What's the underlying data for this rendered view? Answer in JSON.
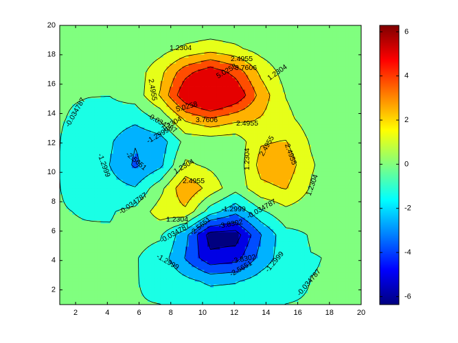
{
  "chart_data": {
    "type": "contour",
    "colormap": "jet",
    "x": [
      1,
      2.58,
      4.17,
      5.75,
      7.33,
      8.92,
      10.5,
      12.08,
      13.67,
      15.25,
      16.83,
      18.42,
      20
    ],
    "y": [
      1,
      2.58,
      4.17,
      5.75,
      7.33,
      8.92,
      10.5,
      12.08,
      13.67,
      15.25,
      16.83,
      18.42,
      20
    ],
    "z": [
      [
        0,
        0,
        0,
        0,
        -0.03,
        -0.14,
        -0.25,
        -0.22,
        -0.11,
        -0.03,
        0,
        0,
        0
      ],
      [
        0,
        0,
        0.01,
        0,
        -0.23,
        -0.91,
        -1.57,
        -1.41,
        -0.69,
        -0.18,
        -0.03,
        0,
        0
      ],
      [
        0,
        0.01,
        0.05,
        0.05,
        -0.59,
        -2.64,
        -4.76,
        -4.35,
        -2.1,
        -0.53,
        -0.06,
        0,
        0
      ],
      [
        0,
        0.01,
        0.08,
        0.33,
        0.15,
        -2.18,
        -5.68,
        -5.76,
        -2.63,
        -0.44,
        0.04,
        0.03,
        0
      ],
      [
        -0.01,
        -0.06,
        -0.13,
        0.3,
        1.86,
        2.22,
        -0.72,
        -2.22,
        -0.27,
        0.88,
        0.5,
        0.11,
        0.01
      ],
      [
        -0.03,
        -0.2,
        -0.8,
        -1.21,
        0.8,
        3.55,
        2,
        0.39,
        2.2,
        2.56,
        1.12,
        0.24,
        0.03
      ],
      [
        -0.04,
        -0.3,
        -1.33,
        -2.77,
        -1.65,
        1.48,
        0.98,
        0.37,
        2.94,
        3.27,
        1.41,
        0.3,
        0.03
      ],
      [
        -0.03,
        -0.25,
        -1.12,
        -2.49,
        -2,
        0.39,
        0.46,
        0.38,
        2.38,
        2.56,
        1.09,
        0.23,
        0.03
      ],
      [
        -0.01,
        -0.11,
        -0.48,
        -0.86,
        0.23,
        2.79,
        3.69,
        2.93,
        2.43,
        1.58,
        0.58,
        0.11,
        0.01
      ],
      [
        0,
        -0.02,
        -0.01,
        0.48,
        2.61,
        6.19,
        7.99,
        6.25,
        3.25,
        1.18,
        0.29,
        0.05,
        0
      ],
      [
        0,
        0.01,
        0.08,
        0.55,
        2.1,
        4.56,
        5.86,
        4.57,
        2.21,
        0.68,
        0.13,
        0.02,
        0
      ],
      [
        0,
        0,
        0.03,
        0.19,
        0.69,
        1.47,
        1.88,
        1.47,
        0.7,
        0.2,
        0.04,
        0,
        0
      ],
      [
        0,
        0,
        0.01,
        0.03,
        0.11,
        0.23,
        0.3,
        0.23,
        0.11,
        0.03,
        0.01,
        0,
        0
      ]
    ],
    "levels": [
      -5.0954,
      -3.8302,
      -2.5651,
      -1.2999,
      -0.034787,
      1.2304,
      2.4955,
      3.7606,
      5.0258
    ],
    "clim": [
      -6.3605,
      6.2909
    ],
    "xlim": [
      1,
      20
    ],
    "ylim": [
      1,
      20
    ],
    "xticks": [
      2,
      4,
      6,
      8,
      10,
      12,
      14,
      16,
      18,
      20
    ],
    "yticks": [
      2,
      4,
      6,
      8,
      10,
      12,
      14,
      16,
      18,
      20
    ],
    "colorbar_ticks": [
      -6,
      -4,
      -2,
      0,
      2,
      4,
      6
    ]
  }
}
